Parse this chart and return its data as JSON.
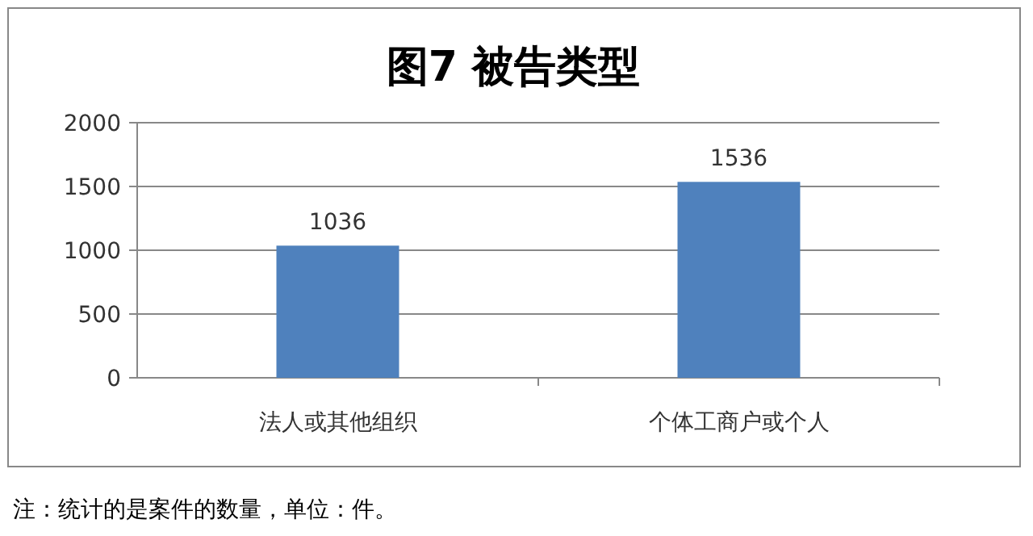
{
  "chart_data": {
    "type": "bar",
    "title": "图7 被告类型",
    "categories": [
      "法人或其他组织",
      "个体工商户或个人"
    ],
    "values": [
      1036,
      1536
    ],
    "color": "#4f81bd",
    "ylim": [
      0,
      2000
    ],
    "yticks": [
      0,
      500,
      1000,
      1500,
      2000
    ],
    "grid": "y",
    "data_labels": true,
    "annotations": [
      "注：统计的是案件的数量，单位：件。"
    ]
  }
}
